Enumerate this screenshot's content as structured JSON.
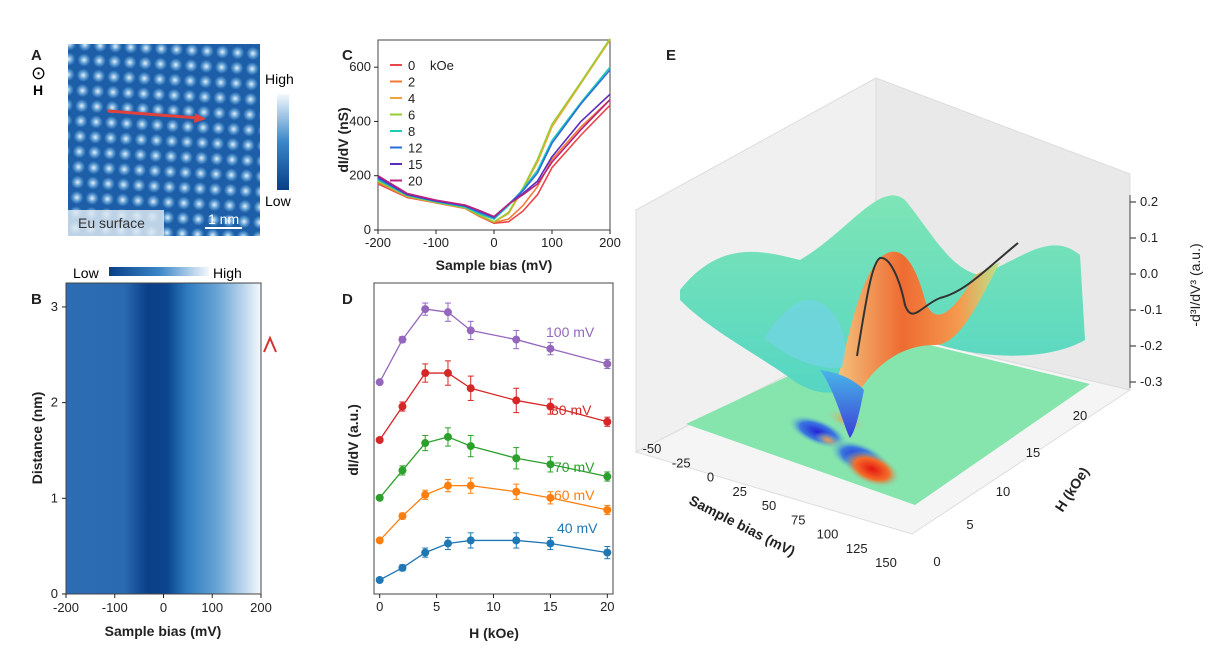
{
  "panels": {
    "A": {
      "label": "A",
      "field_symbol": "⊙",
      "field_label": "H",
      "surface_label": "Eu surface",
      "scalebar_label": "1 nm",
      "colorbar_high": "High",
      "colorbar_low": "Low"
    },
    "B": {
      "label": "B",
      "colorbar_low": "Low",
      "colorbar_high": "High",
      "xlabel": "Sample bias (mV)",
      "ylabel": "Distance (nm)",
      "xticks": [
        "-200",
        "-100",
        "0",
        "100",
        "200"
      ],
      "yticks": [
        "0",
        "1",
        "2",
        "3"
      ]
    },
    "C": {
      "label": "C",
      "legend_unit": "kOe",
      "xlabel": "Sample bias (mV)",
      "ylabel": "dI/dV (nS)",
      "xticks": [
        "-200",
        "-100",
        "0",
        "100",
        "200"
      ],
      "yticks": [
        "0",
        "200",
        "400",
        "600"
      ]
    },
    "D": {
      "label": "D",
      "xlabel": "H (kOe)",
      "ylabel": "dI/dV (a.u.)",
      "xticks": [
        "0",
        "5",
        "10",
        "15",
        "20"
      ]
    },
    "E": {
      "label": "E",
      "xlabel": "Sample bias (mV)",
      "ylabel": "H (kOe)",
      "zlabel": "-d³I/dV³ (a.u.)",
      "xticks": [
        "-50",
        "-25",
        "0",
        "25",
        "50",
        "75",
        "100",
        "125",
        "150"
      ],
      "yticks": [
        "0",
        "5",
        "10",
        "15",
        "20"
      ],
      "zticks": [
        "0.2",
        "0.1",
        "0.0",
        "-0.1",
        "-0.2",
        "-0.3"
      ]
    }
  },
  "colors": {
    "map_dark": "#0a3f86",
    "map_mid": "#2f7cc0",
    "map_light": "#f4f8fc",
    "arrow_red": "#e0413c"
  },
  "chart_data": [
    {
      "panel": "C",
      "type": "line",
      "xlabel": "Sample bias (mV)",
      "ylabel": "dI/dV (nS)",
      "xlim": [
        -200,
        200
      ],
      "ylim": [
        0,
        700
      ],
      "x": [
        -200,
        -150,
        -100,
        -50,
        -25,
        0,
        25,
        50,
        75,
        100,
        150,
        200
      ],
      "series": [
        {
          "name": "0",
          "color": "#e8464a",
          "values": [
            170,
            120,
            100,
            80,
            50,
            25,
            30,
            70,
            130,
            230,
            350,
            460
          ]
        },
        {
          "name": "2",
          "color": "#f07a36",
          "values": [
            175,
            122,
            100,
            80,
            50,
            28,
            40,
            90,
            160,
            260,
            380,
            480
          ]
        },
        {
          "name": "4",
          "color": "#f1a43c",
          "values": [
            180,
            125,
            102,
            82,
            55,
            30,
            60,
            150,
            250,
            380,
            540,
            700
          ]
        },
        {
          "name": "6",
          "color": "#9acd32",
          "values": [
            180,
            125,
            102,
            82,
            55,
            30,
            65,
            155,
            260,
            390,
            545,
            705
          ]
        },
        {
          "name": "8",
          "color": "#1fc9b8",
          "values": [
            185,
            128,
            104,
            85,
            60,
            40,
            90,
            150,
            220,
            330,
            470,
            600
          ]
        },
        {
          "name": "12",
          "color": "#2a6fdb",
          "values": [
            190,
            130,
            106,
            88,
            65,
            45,
            95,
            145,
            210,
            320,
            465,
            590
          ]
        },
        {
          "name": "15",
          "color": "#5b2bbf",
          "values": [
            195,
            132,
            108,
            90,
            70,
            48,
            95,
            135,
            180,
            270,
            400,
            500
          ]
        },
        {
          "name": "20",
          "color": "#b8237e",
          "values": [
            200,
            135,
            110,
            92,
            72,
            50,
            95,
            130,
            170,
            250,
            370,
            480
          ]
        }
      ]
    },
    {
      "panel": "D",
      "type": "line",
      "xlabel": "H (kOe)",
      "ylabel": "dI/dV (a.u.)",
      "xlim": [
        -0.5,
        20.5
      ],
      "ylim": [
        0,
        1
      ],
      "x": [
        0,
        2,
        4,
        6,
        8,
        12,
        15,
        20
      ],
      "series": [
        {
          "name": "100 mV",
          "color": "#9467bd",
          "values": [
            0.65,
            0.79,
            0.89,
            0.88,
            0.82,
            0.79,
            0.76,
            0.71
          ],
          "errors": [
            0,
            0.01,
            0.02,
            0.03,
            0.03,
            0.03,
            0.02,
            0.015
          ]
        },
        {
          "name": "80 mV",
          "color": "#d62728",
          "values": [
            0.46,
            0.57,
            0.68,
            0.68,
            0.63,
            0.59,
            0.57,
            0.52
          ],
          "errors": [
            0,
            0.015,
            0.03,
            0.04,
            0.04,
            0.04,
            0.025,
            0.015
          ]
        },
        {
          "name": "70 mV",
          "color": "#2ca02c",
          "values": [
            0.27,
            0.36,
            0.45,
            0.47,
            0.44,
            0.4,
            0.38,
            0.34
          ],
          "errors": [
            0,
            0.015,
            0.025,
            0.03,
            0.035,
            0.035,
            0.025,
            0.015
          ]
        },
        {
          "name": "60 mV",
          "color": "#ff7f0e",
          "values": [
            0.13,
            0.21,
            0.28,
            0.31,
            0.31,
            0.29,
            0.27,
            0.23
          ],
          "errors": [
            0,
            0.01,
            0.015,
            0.02,
            0.025,
            0.025,
            0.02,
            0.015
          ]
        },
        {
          "name": "40 mV",
          "color": "#1f77b4",
          "values": [
            0.0,
            0.04,
            0.09,
            0.12,
            0.13,
            0.13,
            0.12,
            0.09
          ],
          "errors": [
            0,
            0.01,
            0.015,
            0.02,
            0.025,
            0.025,
            0.02,
            0.02
          ]
        }
      ]
    },
    {
      "panel": "B",
      "type": "heatmap",
      "xlabel": "Sample bias (mV)",
      "ylabel": "Distance (nm)",
      "xlim": [
        -200,
        200
      ],
      "ylim": [
        0,
        3.25
      ]
    },
    {
      "panel": "E",
      "type": "area",
      "xlabel": "Sample bias (mV)",
      "ylabel": "H (kOe)",
      "zlabel": "-d³I/dV³ (a.u.)",
      "xlim": [
        -60,
        160
      ],
      "ylim": [
        0,
        22
      ],
      "zlim": [
        -0.35,
        0.25
      ]
    }
  ]
}
